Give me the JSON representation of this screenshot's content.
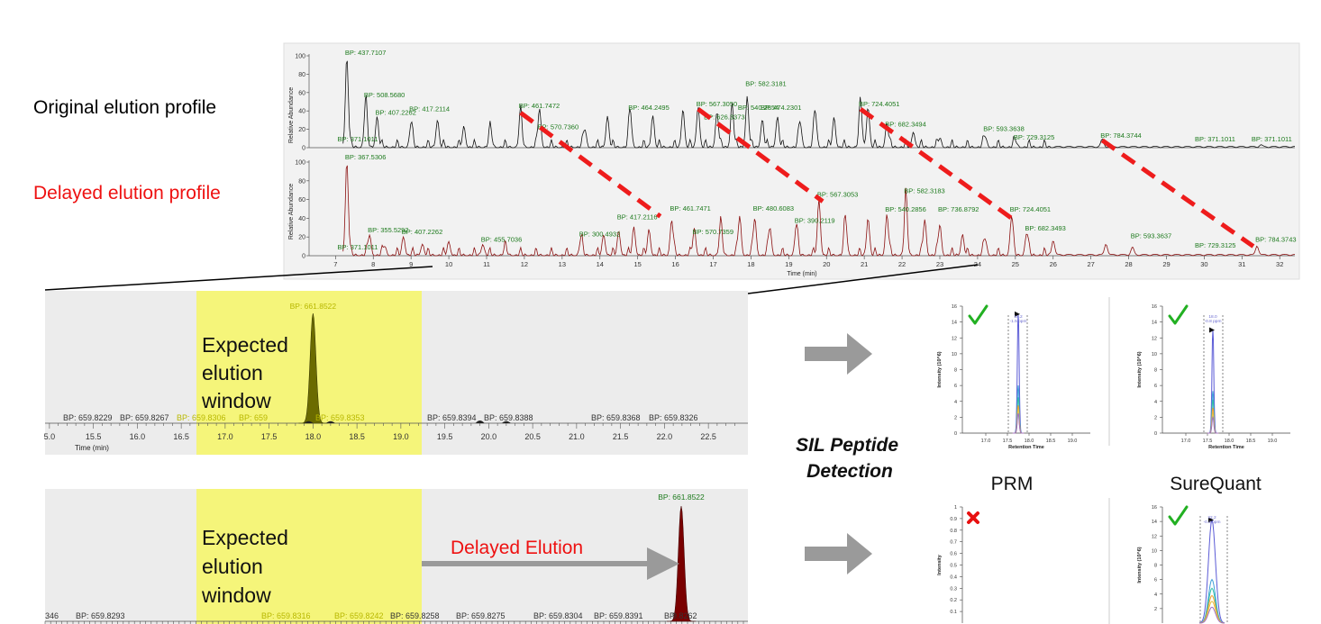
{
  "labels": {
    "original_profile": "Original elution profile",
    "delayed_profile": "Delayed elution profile",
    "expected_window": [
      "Expected",
      "elution",
      "window"
    ],
    "delayed_elution": "Delayed Elution",
    "sil_detection": [
      "SIL Peptide",
      "Detection"
    ],
    "prm": "PRM",
    "surequant": "SureQuant"
  },
  "colors": {
    "panel_bg": "#f2f2f2",
    "panel_bg_dark": "#ececec",
    "black_trace": "#111111",
    "red_trace": "#8b1010",
    "olive_peak": "#6b6b00",
    "dark_red_peak": "#7a0000",
    "highlight": "#f5f57a",
    "dash": "#ee1c1c",
    "bp_label": "#1d7a1d",
    "arrow_gray": "#9a9a9a",
    "check": "#22b022",
    "cross": "#e81010",
    "red_text": "#ee1111"
  },
  "chart_data": [
    {
      "type": "line",
      "name_panel": "overview-chromatogram",
      "xlabel": "Time (min)",
      "ylabel": "Relative Abundance",
      "xlim": [
        6.3,
        32.4
      ],
      "ylim": [
        0,
        100
      ],
      "x_ticks": [
        "7",
        "8",
        "9",
        "10",
        "11",
        "12",
        "13",
        "14",
        "15",
        "16",
        "17",
        "18",
        "19",
        "20",
        "21",
        "22",
        "23",
        "24",
        "25",
        "26",
        "27",
        "28",
        "29",
        "30",
        "31",
        "32"
      ],
      "y_ticks": [
        "0",
        "20",
        "40",
        "60",
        "80",
        "100"
      ],
      "series": [
        {
          "trace": "original",
          "peaks": [
            [
              7.3,
              98
            ],
            [
              7.8,
              52
            ],
            [
              8.1,
              33
            ],
            [
              9.0,
              26
            ],
            [
              9.7,
              30
            ],
            [
              10.4,
              22
            ],
            [
              11.1,
              21
            ],
            [
              11.9,
              38
            ],
            [
              12.4,
              42
            ],
            [
              13.6,
              20
            ],
            [
              14.2,
              34
            ],
            [
              14.8,
              41
            ],
            [
              15.4,
              35
            ],
            [
              16.2,
              42
            ],
            [
              16.6,
              45
            ],
            [
              17.1,
              38
            ],
            [
              17.5,
              48
            ],
            [
              17.9,
              55
            ],
            [
              18.3,
              30
            ],
            [
              18.7,
              33
            ],
            [
              19.3,
              28
            ],
            [
              19.7,
              40
            ],
            [
              20.2,
              32
            ],
            [
              20.9,
              49
            ],
            [
              21.1,
              44
            ],
            [
              21.6,
              26
            ],
            [
              22.3,
              17
            ],
            [
              23.0,
              10
            ],
            [
              24.2,
              12
            ],
            [
              25.0,
              7
            ],
            [
              27.3,
              8
            ],
            [
              31.5,
              2
            ]
          ],
          "annotations": [
            {
              "text": "BP: 437.7107",
              "x": 7.3,
              "y": 98
            },
            {
              "text": "BP: 508.5680",
              "x": 7.8,
              "y": 52
            },
            {
              "text": "BP: 407.2262",
              "x": 8.1,
              "y": 33
            },
            {
              "text": "BP: 417.2114",
              "x": 9.0,
              "y": 37
            },
            {
              "text": "BP: 371.1011",
              "x": 7.1,
              "y": 4
            },
            {
              "text": "BP: 461.7472",
              "x": 11.9,
              "y": 40
            },
            {
              "text": "BP: 570.7360",
              "x": 12.4,
              "y": 17
            },
            {
              "text": "BP: 464.2495",
              "x": 14.8,
              "y": 38
            },
            {
              "text": "BP: 567.3050",
              "x": 16.6,
              "y": 42
            },
            {
              "text": "BP: 626.3373",
              "x": 16.8,
              "y": 28
            },
            {
              "text": "BP: 540.2854",
              "x": 17.7,
              "y": 38
            },
            {
              "text": "BP: 474.2301",
              "x": 18.3,
              "y": 38
            },
            {
              "text": "BP: 582.3181",
              "x": 17.9,
              "y": 64
            },
            {
              "text": "BP: 724.4051",
              "x": 20.9,
              "y": 42
            },
            {
              "text": "BP: 682.3494",
              "x": 21.6,
              "y": 20
            },
            {
              "text": "BP: 593.3638",
              "x": 24.2,
              "y": 15
            },
            {
              "text": "BP: 729.3125",
              "x": 25.0,
              "y": 6
            },
            {
              "text": "BP: 784.3744",
              "x": 27.3,
              "y": 8
            },
            {
              "text": "BP: 371.1011",
              "x": 29.8,
              "y": 4
            },
            {
              "text": "BP: 371.1011",
              "x": 31.3,
              "y": 4
            }
          ]
        },
        {
          "trace": "delayed",
          "peaks": [
            [
              7.3,
              100
            ],
            [
              7.9,
              22
            ],
            [
              8.3,
              10
            ],
            [
              8.8,
              20
            ],
            [
              9.3,
              12
            ],
            [
              10.0,
              14
            ],
            [
              10.9,
              12
            ],
            [
              11.5,
              8
            ],
            [
              13.5,
              18
            ],
            [
              14.1,
              22
            ],
            [
              14.5,
              26
            ],
            [
              14.9,
              30
            ],
            [
              15.3,
              27
            ],
            [
              15.9,
              38
            ],
            [
              16.5,
              28
            ],
            [
              17.2,
              34
            ],
            [
              17.7,
              42
            ],
            [
              18.1,
              40
            ],
            [
              18.5,
              30
            ],
            [
              19.2,
              32
            ],
            [
              19.8,
              60
            ],
            [
              20.5,
              40
            ],
            [
              21.1,
              40
            ],
            [
              21.6,
              44
            ],
            [
              22.1,
              64
            ],
            [
              22.6,
              38
            ],
            [
              23.0,
              33
            ],
            [
              23.6,
              22
            ],
            [
              24.2,
              18
            ],
            [
              24.9,
              42
            ],
            [
              25.3,
              24
            ],
            [
              26.0,
              16
            ],
            [
              27.4,
              12
            ],
            [
              28.1,
              8
            ],
            [
              31.4,
              10
            ]
          ],
          "annotations": [
            {
              "text": "BP: 367.5306",
              "x": 7.3,
              "y": 100
            },
            {
              "text": "BP: 355.5292",
              "x": 7.9,
              "y": 22
            },
            {
              "text": "BP: 407.2262",
              "x": 8.8,
              "y": 20
            },
            {
              "text": "BP: 455.7036",
              "x": 10.9,
              "y": 12
            },
            {
              "text": "BP: 371.1011",
              "x": 7.1,
              "y": 4
            },
            {
              "text": "BP: 300.4932",
              "x": 13.5,
              "y": 18
            },
            {
              "text": "BP: 417.2116",
              "x": 14.5,
              "y": 36
            },
            {
              "text": "BP: 461.7471",
              "x": 15.9,
              "y": 45
            },
            {
              "text": "BP: 570.7359",
              "x": 16.5,
              "y": 20
            },
            {
              "text": "BP: 480.6083",
              "x": 18.1,
              "y": 45
            },
            {
              "text": "BP: 390.2119",
              "x": 19.2,
              "y": 32
            },
            {
              "text": "BP: 567.3053",
              "x": 19.8,
              "y": 60
            },
            {
              "text": "BP: 540.2856",
              "x": 21.6,
              "y": 44
            },
            {
              "text": "BP: 582.3183",
              "x": 22.1,
              "y": 64
            },
            {
              "text": "BP: 736.8792",
              "x": 23.0,
              "y": 44
            },
            {
              "text": "BP: 724.4051",
              "x": 24.9,
              "y": 44
            },
            {
              "text": "BP: 682.3493",
              "x": 25.3,
              "y": 24
            },
            {
              "text": "BP: 593.3637",
              "x": 28.1,
              "y": 16
            },
            {
              "text": "BP: 729.3125",
              "x": 29.8,
              "y": 6
            },
            {
              "text": "BP: 784.3743",
              "x": 31.4,
              "y": 12
            }
          ]
        }
      ],
      "shift_lines": [
        {
          "from": [
            11.9,
            38
          ],
          "to": [
            15.6,
            42
          ]
        },
        {
          "from": [
            16.6,
            42
          ],
          "to": [
            19.9,
            58
          ]
        },
        {
          "from": [
            20.9,
            42
          ],
          "to": [
            24.9,
            40
          ]
        },
        {
          "from": [
            27.3,
            8
          ],
          "to": [
            31.3,
            10
          ]
        }
      ]
    },
    {
      "type": "line",
      "name_panel": "expected-zoom",
      "xlabel": "Time (min)",
      "xlim": [
        15.0,
        22.9
      ],
      "x_ticks": [
        "5.0",
        "15.5",
        "16.0",
        "16.5",
        "17.0",
        "17.5",
        "18.0",
        "18.5",
        "19.0",
        "19.5",
        "20.0",
        "20.5",
        "21.0",
        "21.5",
        "22.0",
        "22.5"
      ],
      "highlight_range": [
        16.7,
        19.2
      ],
      "peak": {
        "x": 18.0,
        "y": 100,
        "label": "BP: 661.8522"
      },
      "baseline_labels": [
        "BP: 659.8229",
        "BP: 659.8267",
        "BP: 659.8306",
        "BP: 659",
        "BP: 659.8353",
        "BP: 659.8394",
        "BP: 659.8388",
        "BP: 659.8368",
        "BP: 659.8326"
      ]
    },
    {
      "type": "line",
      "name_panel": "delayed-zoom",
      "highlight_range": [
        16.7,
        19.2
      ],
      "peak": {
        "label": "BP: 661.8522"
      },
      "baseline_labels": [
        "346",
        "BP: 659.8293",
        "BP: 659.8316",
        "BP: 659.8242",
        "BP: 659.8258",
        "BP: 659.8275",
        "BP: 659.8304",
        "BP: 659.8391",
        "BP",
        "9.8262"
      ]
    },
    {
      "type": "line",
      "name_panel": "prm-top",
      "ylabel": "Intensity (10^6)",
      "xlabel": "Retention Time",
      "ylim": [
        0,
        16
      ],
      "y_ticks": [
        "0",
        "2",
        "4",
        "6",
        "8",
        "10",
        "12",
        "14",
        "16"
      ],
      "x_ticks": [
        "17.0",
        "17.5",
        "18.0",
        "18.5",
        "19.0"
      ],
      "peak_label": [
        "18.2",
        "-1.5 ppm"
      ],
      "status": "check",
      "peak_x": 18.2,
      "transitions": [
        15.0,
        6.0,
        4.5,
        3.5,
        3.0,
        2.5
      ]
    },
    {
      "type": "line",
      "name_panel": "surequant-top",
      "ylabel": "Intensity (10^6)",
      "xlabel": "Retention Time",
      "ylim": [
        0,
        16
      ],
      "y_ticks": [
        "0",
        "2",
        "4",
        "6",
        "8",
        "10",
        "12",
        "14",
        "16"
      ],
      "x_ticks": [
        "17.0",
        "17.5",
        "18.0",
        "18.5",
        "19.0"
      ],
      "peak_label": [
        "18.0",
        "-0.8 ppm"
      ],
      "status": "check",
      "peak_x": 18.0,
      "transitions": [
        13.0,
        5.3,
        4.2,
        3.2,
        2.6,
        2.0
      ]
    },
    {
      "type": "line",
      "name_panel": "prm-bottom",
      "ylabel": "Intensity",
      "ylim": [
        0,
        1
      ],
      "y_ticks": [
        "0.1",
        "0.2",
        "0.3",
        "0.4",
        "0.5",
        "0.6",
        "0.7",
        "0.8",
        "0.9",
        "1"
      ],
      "status": "cross"
    },
    {
      "type": "line",
      "name_panel": "surequant-bottom",
      "ylabel": "Intensity (10^6)",
      "ylim": [
        0,
        16
      ],
      "y_ticks": [
        "2",
        "4",
        "6",
        "8",
        "10",
        "12",
        "14",
        "16"
      ],
      "peak_label": [
        "22.2",
        "-0.4 ppm"
      ],
      "status": "check",
      "transitions": [
        14.2,
        6.0,
        4.8,
        3.8,
        3.0,
        2.2
      ]
    }
  ]
}
